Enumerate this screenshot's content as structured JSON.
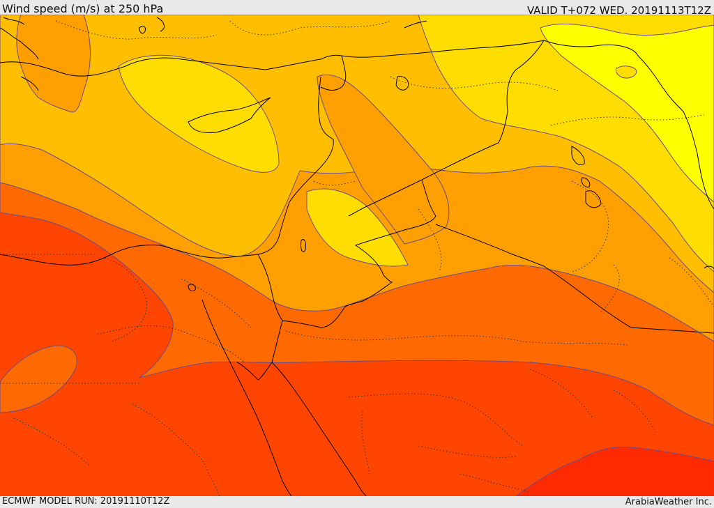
{
  "header": {
    "title": "Wind speed (m/s) at 250 hPa",
    "valid_time": "VALID T+072 WED. 20191113T12Z"
  },
  "footer": {
    "model_run": "ECMWF MODEL RUN: 20191110T12Z",
    "credit": "ArabiaWeather Inc."
  },
  "map": {
    "variable": "Wind speed",
    "level": "250 hPa",
    "units": "m/s",
    "colors": {
      "band_lightest": "#ffff00",
      "band_light": "#ffdd00",
      "band_mid": "#ffbf00",
      "band_orange": "#ff9f00",
      "band_dark_orange": "#ff6a00",
      "band_red_orange": "#ff4500",
      "band_red": "#ff2a00",
      "contour_line": "#6a4a8a",
      "border_line": "#000000"
    }
  }
}
